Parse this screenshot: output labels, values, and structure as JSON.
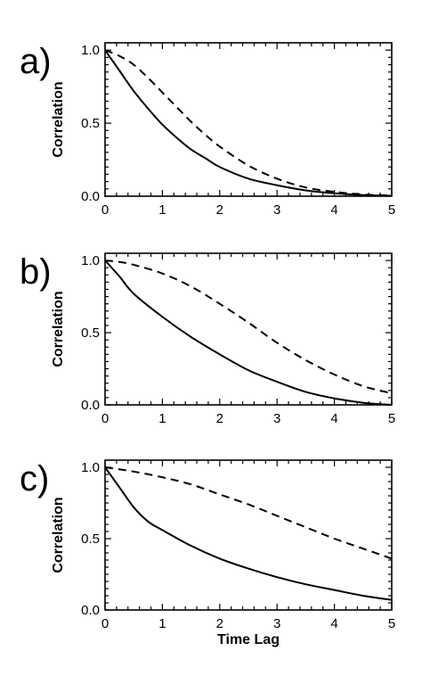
{
  "chart_data": [
    {
      "type": "line",
      "panel_label": "a)",
      "xlabel": "",
      "ylabel": "Correlation",
      "xlim": [
        0,
        5
      ],
      "ylim": [
        0,
        1.05
      ],
      "xticks": [
        "0",
        "1",
        "2",
        "3",
        "4",
        "5"
      ],
      "yticks": [
        "0.0",
        "0.5",
        "1.0"
      ],
      "grid": false,
      "series": [
        {
          "style": "solid",
          "x": [
            0,
            0.25,
            0.5,
            0.75,
            1,
            1.25,
            1.5,
            1.75,
            2,
            2.5,
            3,
            3.5,
            4,
            4.5,
            5
          ],
          "y": [
            1.0,
            0.86,
            0.72,
            0.6,
            0.49,
            0.4,
            0.32,
            0.26,
            0.2,
            0.12,
            0.075,
            0.04,
            0.02,
            0.008,
            0.003
          ]
        },
        {
          "style": "dashed",
          "x": [
            0,
            0.25,
            0.5,
            0.75,
            1,
            1.25,
            1.5,
            1.75,
            2,
            2.5,
            3,
            3.5,
            4,
            4.5,
            5
          ],
          "y": [
            1.0,
            0.96,
            0.9,
            0.81,
            0.71,
            0.61,
            0.51,
            0.42,
            0.34,
            0.21,
            0.12,
            0.06,
            0.03,
            0.012,
            0.005
          ]
        }
      ]
    },
    {
      "type": "line",
      "panel_label": "b)",
      "xlabel": "",
      "ylabel": "Correlation",
      "xlim": [
        0,
        5
      ],
      "ylim": [
        0,
        1.05
      ],
      "xticks": [
        "0",
        "1",
        "2",
        "3",
        "4",
        "5"
      ],
      "yticks": [
        "0.0",
        "0.5",
        "1.0"
      ],
      "grid": false,
      "series": [
        {
          "style": "solid",
          "x": [
            0,
            0.25,
            0.5,
            1,
            1.5,
            2,
            2.5,
            3,
            3.5,
            4,
            4.5,
            5
          ],
          "y": [
            1.0,
            0.89,
            0.77,
            0.61,
            0.47,
            0.35,
            0.24,
            0.16,
            0.09,
            0.045,
            0.015,
            0.0
          ]
        },
        {
          "style": "dashed",
          "x": [
            0,
            0.25,
            0.5,
            1,
            1.5,
            2,
            2.5,
            3,
            3.5,
            4,
            4.5,
            5
          ],
          "y": [
            1.0,
            0.99,
            0.97,
            0.91,
            0.82,
            0.7,
            0.57,
            0.43,
            0.31,
            0.21,
            0.13,
            0.08
          ]
        }
      ]
    },
    {
      "type": "line",
      "panel_label": "c)",
      "xlabel": "Time Lag",
      "ylabel": "Correlation",
      "xlim": [
        0,
        5
      ],
      "ylim": [
        0,
        1.05
      ],
      "xticks": [
        "0",
        "1",
        "2",
        "3",
        "4",
        "5"
      ],
      "yticks": [
        "0.0",
        "0.5",
        "1.0"
      ],
      "grid": false,
      "series": [
        {
          "style": "solid",
          "x": [
            0,
            0.25,
            0.5,
            0.75,
            1,
            1.5,
            2,
            2.5,
            3,
            3.5,
            4,
            4.5,
            5
          ],
          "y": [
            1.0,
            0.86,
            0.72,
            0.62,
            0.56,
            0.45,
            0.36,
            0.29,
            0.23,
            0.18,
            0.14,
            0.1,
            0.07
          ]
        },
        {
          "style": "dashed",
          "x": [
            0,
            0.5,
            1,
            1.5,
            2,
            2.5,
            3,
            3.5,
            4,
            4.5,
            5
          ],
          "y": [
            1.0,
            0.97,
            0.93,
            0.88,
            0.81,
            0.74,
            0.66,
            0.58,
            0.5,
            0.43,
            0.36
          ]
        }
      ]
    }
  ]
}
